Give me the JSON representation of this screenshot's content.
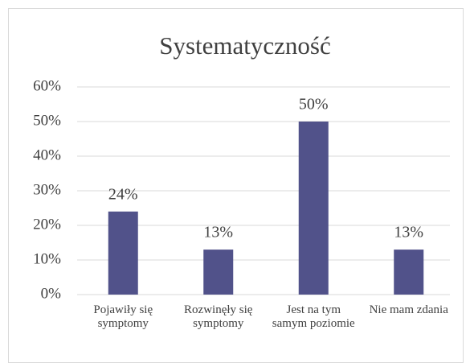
{
  "chart_data": {
    "type": "bar",
    "title": "Systematyczność",
    "categories": [
      "Pojawiły się symptomy",
      "Rozwinęły się symptomy",
      "Jest na tym samym poziomie",
      "Nie mam zdania"
    ],
    "values": [
      24,
      13,
      50,
      13
    ],
    "value_labels": [
      "24%",
      "13%",
      "50%",
      "13%"
    ],
    "color": "#51528a",
    "ylim": [
      0,
      60
    ],
    "yticks": [
      {
        "value": 0,
        "label": "0%"
      },
      {
        "value": 10,
        "label": "10%"
      },
      {
        "value": 20,
        "label": "20%"
      },
      {
        "value": 30,
        "label": "30%"
      },
      {
        "value": 40,
        "label": "40%"
      },
      {
        "value": 50,
        "label": "50%"
      },
      {
        "value": 60,
        "label": "60%"
      }
    ],
    "grid": true
  }
}
